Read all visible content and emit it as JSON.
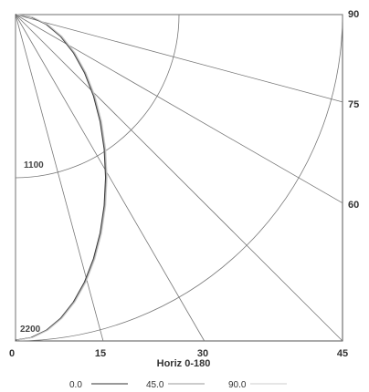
{
  "chart_data": {
    "type": "polar-quadrant",
    "xlabel": "Horiz 0-180",
    "x_tick_labels": [
      "0",
      "15",
      "30",
      "45"
    ],
    "right_tick_labels": [
      "90",
      "75",
      "60"
    ],
    "radial_ticks": [
      {
        "value": 1100,
        "label": "1100"
      },
      {
        "value": 2200,
        "label": "2200"
      }
    ],
    "radial_max": 2200,
    "angle_lines": [
      0,
      15,
      30,
      45,
      60,
      75,
      90
    ],
    "series": [
      {
        "name": "0.0",
        "color": "#333333",
        "angles": [
          0,
          5,
          10,
          15,
          20,
          25,
          30,
          35,
          40,
          45,
          50,
          55,
          60,
          65,
          70,
          75,
          80,
          85,
          90
        ],
        "values": [
          2200,
          2191,
          2166,
          2125,
          2067,
          1994,
          1905,
          1802,
          1685,
          1556,
          1414,
          1262,
          1100,
          930,
          752,
          569,
          382,
          192,
          0
        ]
      },
      {
        "name": "45.0",
        "color": "#999999",
        "angles": [
          0,
          5,
          10,
          15,
          20,
          25,
          30,
          35,
          40,
          45,
          50,
          55,
          60,
          65,
          70,
          75,
          80,
          85,
          90
        ],
        "values": [
          2200,
          2191,
          2166,
          2125,
          2067,
          1994,
          1905,
          1802,
          1685,
          1556,
          1414,
          1262,
          1100,
          930,
          752,
          569,
          382,
          192,
          0
        ]
      },
      {
        "name": "90.0",
        "color": "#cccccc",
        "angles": [
          0,
          5,
          10,
          15,
          20,
          25,
          30,
          35,
          40,
          45,
          50,
          55,
          60,
          65,
          70,
          75,
          80,
          85,
          90
        ],
        "values": [
          2200,
          2191,
          2166,
          2125,
          2067,
          1994,
          1905,
          1802,
          1685,
          1556,
          1414,
          1262,
          1100,
          930,
          752,
          569,
          382,
          192,
          0
        ]
      }
    ],
    "grid": true,
    "legend_position": "bottom"
  }
}
